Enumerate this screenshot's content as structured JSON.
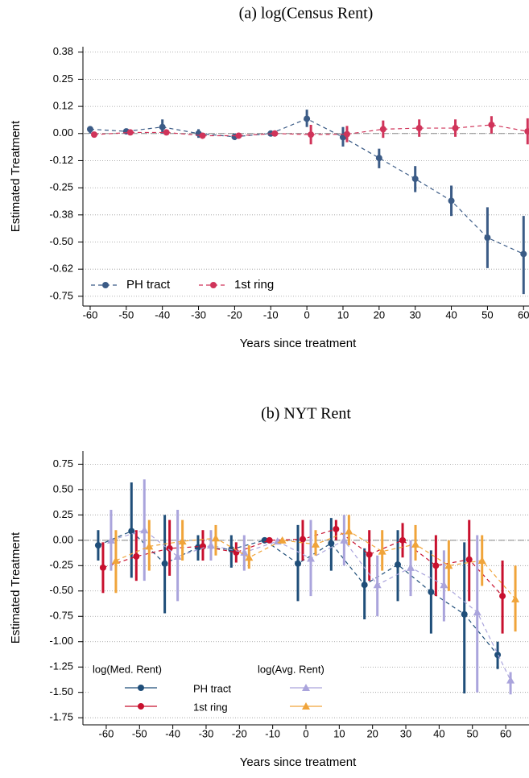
{
  "chart_data": [
    {
      "type": "line",
      "title": "(a) log(Census Rent)",
      "xlabel": "Years since treatment",
      "ylabel": "Estimated Treatment",
      "x": [
        -60,
        -50,
        -40,
        -30,
        -20,
        -10,
        0,
        10,
        20,
        30,
        40,
        50,
        60
      ],
      "series": [
        {
          "name": "PH tract",
          "color": "#3b5b86",
          "marker": "circle",
          "values": [
            0.02,
            0.01,
            0.03,
            0.0,
            -0.015,
            0.0,
            0.068,
            -0.017,
            -0.113,
            -0.209,
            -0.31,
            -0.48,
            -0.555
          ],
          "ci_low": [
            0.0,
            0.0,
            0.0,
            -0.02,
            -0.03,
            -0.01,
            0.03,
            -0.06,
            -0.16,
            -0.27,
            -0.38,
            -0.62,
            -0.74
          ],
          "ci_high": [
            0.03,
            0.02,
            0.065,
            0.02,
            0.0,
            0.01,
            0.11,
            0.03,
            -0.07,
            -0.15,
            -0.24,
            -0.34,
            -0.38
          ]
        },
        {
          "name": "1st ring",
          "color": "#d0345a",
          "marker": "circle",
          "values": [
            -0.005,
            0.005,
            0.005,
            -0.01,
            -0.01,
            0.0,
            -0.005,
            -0.003,
            0.02,
            0.025,
            0.025,
            0.04,
            0.01
          ],
          "ci_low": [
            -0.015,
            -0.005,
            -0.005,
            -0.02,
            -0.02,
            -0.01,
            -0.05,
            -0.04,
            -0.02,
            -0.015,
            -0.015,
            0.0,
            -0.05
          ],
          "ci_high": [
            0.005,
            0.015,
            0.015,
            0.0,
            0.0,
            0.01,
            0.04,
            0.035,
            0.06,
            0.065,
            0.065,
            0.08,
            0.07
          ]
        }
      ],
      "xlim": [
        -62,
        61.5
      ],
      "ylim": [
        -0.795,
        0.4
      ],
      "xticks": [
        -60,
        -50,
        -40,
        -30,
        -20,
        -10,
        0,
        10,
        20,
        30,
        40,
        50,
        60
      ],
      "yticks": [
        {
          "value": 0.375,
          "label": "0.38"
        },
        0.25,
        {
          "value": 0.125,
          "label": "0.12"
        },
        {
          "value": 0,
          "label": "0.00"
        },
        {
          "value": -0.125,
          "label": "-0.12"
        },
        -0.25,
        {
          "value": -0.375,
          "label": "-0.38"
        },
        {
          "value": -0.5,
          "label": "-0.50"
        },
        {
          "value": -0.625,
          "label": "-0.62"
        },
        -0.75
      ],
      "grid": true,
      "refline": 0,
      "legend": "bottom-left"
    },
    {
      "type": "line",
      "title": "(b) NYT Rent",
      "xlabel": "Years since treatment",
      "ylabel": "Estimated Treatment",
      "x": [
        -60,
        -50,
        -40,
        -30,
        -20,
        -10,
        0,
        10,
        20,
        30,
        40,
        50,
        60
      ],
      "series": [
        {
          "name": "PH tract",
          "group": "log(Med. Rent)",
          "color": "#1f4e79",
          "marker": "circle",
          "values": [
            -0.05,
            0.09,
            -0.23,
            -0.07,
            -0.09,
            0.0,
            -0.23,
            -0.03,
            -0.44,
            -0.24,
            -0.51,
            -0.73,
            -1.13
          ],
          "ci_low": [
            -0.2,
            -0.37,
            -0.72,
            -0.2,
            -0.27,
            -0.02,
            -0.6,
            -0.3,
            -0.78,
            -0.6,
            -0.92,
            -1.51,
            -1.27
          ],
          "ci_high": [
            0.1,
            0.57,
            0.25,
            0.05,
            0.05,
            0.02,
            0.15,
            0.22,
            -0.08,
            0.1,
            -0.1,
            -0.02,
            -1.0
          ]
        },
        {
          "name": "1st ring",
          "group": "log(Med. Rent)",
          "color": "#c8102e",
          "marker": "circle",
          "values": [
            -0.27,
            -0.16,
            -0.08,
            -0.06,
            -0.12,
            0.0,
            0.01,
            0.11,
            -0.14,
            0.0,
            -0.25,
            -0.19,
            -0.55
          ],
          "ci_low": [
            -0.52,
            -0.4,
            -0.35,
            -0.2,
            -0.22,
            -0.02,
            -0.2,
            0.0,
            -0.4,
            -0.17,
            -0.55,
            -0.6,
            -0.92
          ],
          "ci_high": [
            -0.02,
            0.1,
            0.2,
            0.1,
            -0.02,
            0.02,
            0.2,
            0.2,
            0.1,
            0.17,
            0.05,
            0.2,
            -0.2
          ]
        },
        {
          "name": "PH tract",
          "group": "log(Avg. Rent)",
          "color": "#aaa4dc",
          "marker": "triangle",
          "values": [
            0.0,
            0.1,
            -0.16,
            -0.05,
            -0.12,
            -0.01,
            -0.18,
            0.0,
            -0.44,
            -0.27,
            -0.44,
            -0.71,
            -1.38
          ],
          "ci_low": [
            -0.3,
            -0.4,
            -0.6,
            -0.2,
            -0.3,
            -0.03,
            -0.55,
            -0.25,
            -0.75,
            -0.55,
            -0.8,
            -1.5,
            -1.52
          ],
          "ci_high": [
            0.3,
            0.6,
            0.3,
            0.1,
            0.05,
            0.01,
            0.2,
            0.25,
            -0.15,
            0.0,
            -0.1,
            0.05,
            -1.3
          ]
        },
        {
          "name": "1st ring",
          "group": "log(Avg. Rent)",
          "color": "#f0a43a",
          "marker": "triangle",
          "values": [
            -0.2,
            -0.06,
            -0.01,
            0.02,
            -0.17,
            0.0,
            -0.04,
            0.09,
            -0.11,
            -0.04,
            -0.25,
            -0.2,
            -0.58
          ],
          "ci_low": [
            -0.52,
            -0.3,
            -0.2,
            -0.15,
            -0.28,
            -0.02,
            -0.15,
            -0.05,
            -0.3,
            -0.2,
            -0.5,
            -0.45,
            -0.9
          ],
          "ci_high": [
            0.1,
            0.2,
            0.2,
            0.15,
            -0.05,
            0.02,
            0.1,
            0.25,
            0.1,
            0.15,
            0.0,
            0.05,
            -0.25
          ]
        }
      ],
      "xlim": [
        -67,
        67
      ],
      "ylim": [
        -1.82,
        0.88
      ],
      "xticks": [
        -60,
        -50,
        -40,
        -30,
        -20,
        -10,
        0,
        10,
        20,
        30,
        40,
        50,
        60
      ],
      "yticks": [
        0.75,
        {
          "value": 0.5,
          "label": "0.50"
        },
        0.25,
        {
          "value": 0,
          "label": "0.00"
        },
        -0.25,
        {
          "value": -0.5,
          "label": "-0.50"
        },
        -0.75,
        {
          "value": -1,
          "label": "-1.00"
        },
        -1.25,
        {
          "value": -1.5,
          "label": "-1.50"
        },
        -1.75
      ],
      "grid": true,
      "refline": 0,
      "legend": "grouped"
    }
  ]
}
